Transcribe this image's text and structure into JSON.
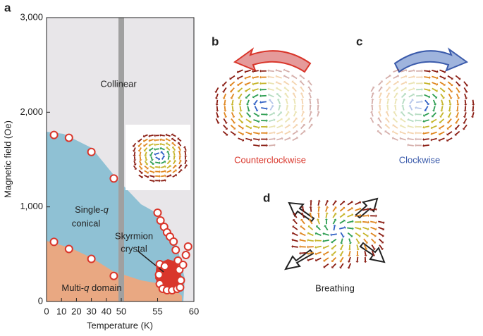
{
  "chart_data": {
    "type": "scatter",
    "panel_labels": [
      "a",
      "b",
      "c",
      "d"
    ],
    "xlabel": "Temperature (K)",
    "ylabel": "Magnetic field (Oe)",
    "xlim": [
      0,
      60
    ],
    "xticks": [
      0,
      10,
      20,
      30,
      40,
      50,
      55,
      60
    ],
    "ylim": [
      0,
      3000
    ],
    "yticks": [
      0,
      {
        "value": 1000,
        "label": "1,000"
      },
      {
        "value": 2000,
        "label": "2,000"
      },
      {
        "value": 3000,
        "label": "3,000"
      }
    ],
    "marker_color": "#d9362b",
    "x": [
      5,
      15,
      30,
      45,
      5,
      15,
      30,
      45,
      55,
      55.4,
      55.9,
      56.3,
      56.7,
      57.2,
      57.5,
      57.8,
      58,
      58.2,
      59.2,
      58.9,
      58.5,
      55.3,
      55.2,
      55.3,
      55.7,
      56.3,
      57,
      57.7,
      58.1,
      56
    ],
    "values": [
      1760,
      1730,
      1580,
      1300,
      630,
      555,
      450,
      270,
      938,
      856,
      789,
      730,
      685,
      633,
      544,
      432,
      335,
      223,
      581,
      491,
      387,
      395,
      283,
      186,
      134,
      119,
      119,
      134,
      149,
      372
    ],
    "phase_labels": {
      "collinear": "Collinear",
      "single_q": [
        "Single-",
        "q"
      ],
      "conical": "conical",
      "skyrmion": [
        "Skyrmion",
        "crystal"
      ],
      "multi_q": [
        "Multi-",
        "q",
        " domain"
      ]
    },
    "mode_labels": {
      "counterclockwise": "Counterclockwise",
      "clockwise": "Clockwise",
      "breathing": "Breathing"
    }
  }
}
